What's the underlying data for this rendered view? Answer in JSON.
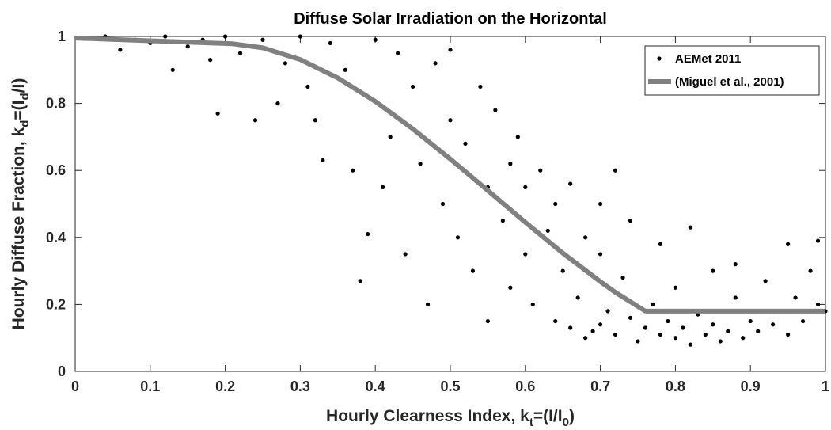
{
  "chart_data": {
    "type": "scatter",
    "title": "Diffuse Solar Irradiation on the Horizontal",
    "xlabel": [
      "Hourly Clearness Index, k",
      "t",
      "=(I/I",
      "0",
      ")"
    ],
    "ylabel": [
      "Hourly Diffuse Fraction, k",
      "d",
      "=(I",
      "d",
      "/I)"
    ],
    "xlim": [
      0,
      1
    ],
    "ylim": [
      0,
      1
    ],
    "xticks": [
      0,
      0.1,
      0.2,
      0.3,
      0.4,
      0.5,
      0.6,
      0.7,
      0.8,
      0.9,
      1
    ],
    "yticks": [
      0,
      0.2,
      0.4,
      0.6,
      0.8,
      1
    ],
    "grid": false,
    "legend": "upper right",
    "series": [
      {
        "name": "AEMet 2011",
        "type": "scatter",
        "color": "#000000",
        "x": [
          0.04,
          0.06,
          0.08,
          0.1,
          0.12,
          0.13,
          0.15,
          0.17,
          0.18,
          0.19,
          0.2,
          0.22,
          0.24,
          0.25,
          0.27,
          0.28,
          0.3,
          0.31,
          0.32,
          0.33,
          0.34,
          0.36,
          0.37,
          0.38,
          0.39,
          0.4,
          0.41,
          0.42,
          0.43,
          0.44,
          0.45,
          0.46,
          0.47,
          0.48,
          0.49,
          0.5,
          0.5,
          0.51,
          0.52,
          0.53,
          0.54,
          0.55,
          0.55,
          0.56,
          0.57,
          0.58,
          0.58,
          0.59,
          0.6,
          0.6,
          0.61,
          0.62,
          0.63,
          0.64,
          0.64,
          0.65,
          0.66,
          0.67,
          0.68,
          0.69,
          0.7,
          0.7,
          0.71,
          0.72,
          0.73,
          0.74,
          0.66,
          0.68,
          0.7,
          0.72,
          0.74,
          0.75,
          0.76,
          0.77,
          0.78,
          0.79,
          0.8,
          0.8,
          0.81,
          0.82,
          0.83,
          0.84,
          0.85,
          0.85,
          0.86,
          0.87,
          0.88,
          0.89,
          0.9,
          0.91,
          0.92,
          0.93,
          0.94,
          0.95,
          0.96,
          0.97,
          0.98,
          0.99,
          1.0,
          0.78,
          0.82,
          0.88,
          0.95,
          0.99
        ],
        "values": [
          1,
          0.96,
          0.99,
          0.98,
          1,
          0.9,
          0.97,
          0.99,
          0.93,
          0.77,
          1,
          0.95,
          0.75,
          0.99,
          0.8,
          0.92,
          1,
          0.85,
          0.75,
          0.63,
          0.98,
          0.9,
          0.6,
          0.27,
          0.41,
          0.99,
          0.55,
          0.7,
          0.95,
          0.35,
          0.85,
          0.62,
          0.2,
          0.92,
          0.5,
          0.75,
          0.96,
          0.4,
          0.68,
          0.3,
          0.85,
          0.15,
          0.55,
          0.78,
          0.45,
          0.25,
          0.62,
          0.7,
          0.35,
          0.55,
          0.2,
          0.6,
          0.42,
          0.15,
          0.5,
          0.3,
          0.56,
          0.22,
          0.4,
          0.12,
          0.35,
          0.5,
          0.18,
          0.6,
          0.28,
          0.45,
          0.13,
          0.1,
          0.14,
          0.11,
          0.16,
          0.09,
          0.13,
          0.2,
          0.11,
          0.15,
          0.1,
          0.25,
          0.13,
          0.08,
          0.17,
          0.11,
          0.3,
          0.14,
          0.09,
          0.12,
          0.22,
          0.1,
          0.15,
          0.12,
          0.27,
          0.14,
          0.18,
          0.11,
          0.22,
          0.15,
          0.3,
          0.2,
          0.18,
          0.38,
          0.43,
          0.32,
          0.38,
          0.39
        ]
      },
      {
        "name": "(Miguel et al., 2001)",
        "type": "line",
        "color": "#808080",
        "x": [
          0,
          0.1,
          0.21,
          0.25,
          0.3,
          0.35,
          0.4,
          0.45,
          0.5,
          0.55,
          0.6,
          0.65,
          0.7,
          0.72,
          0.76,
          1
        ],
        "values": [
          0.995,
          0.987,
          0.978,
          0.966,
          0.931,
          0.876,
          0.806,
          0.724,
          0.634,
          0.54,
          0.445,
          0.353,
          0.268,
          0.236,
          0.18,
          0.18
        ]
      }
    ]
  }
}
